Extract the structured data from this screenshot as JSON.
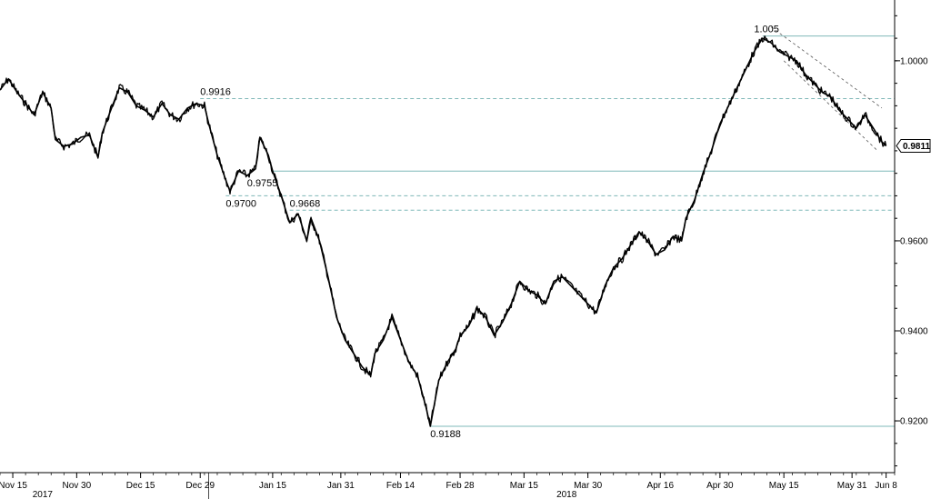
{
  "chart_data": {
    "type": "line",
    "title": "",
    "xlabel": "",
    "ylabel": "",
    "ylim": [
      0.9085,
      1.0135
    ],
    "x_range": [
      "2017-11-12",
      "2018-06-10"
    ],
    "y_ticks": [
      {
        "value": 1.0,
        "label": "1.0000"
      },
      {
        "value": 0.96,
        "label": "0.9600"
      },
      {
        "value": 0.94,
        "label": "0.9400"
      },
      {
        "value": 0.92,
        "label": "0.9200"
      }
    ],
    "x_ticks": [
      {
        "date": "2017-11-15",
        "label": "Nov 15"
      },
      {
        "date": "2017-11-30",
        "label": "Nov 30"
      },
      {
        "date": "2017-12-15",
        "label": "Dec 15"
      },
      {
        "date": "2017-12-29",
        "label": "Dec 29"
      },
      {
        "date": "2018-01-15",
        "label": "Jan 15"
      },
      {
        "date": "2018-01-31",
        "label": "Jan 31"
      },
      {
        "date": "2018-02-14",
        "label": "Feb 14"
      },
      {
        "date": "2018-02-28",
        "label": "Feb 28"
      },
      {
        "date": "2018-03-15",
        "label": "Mar 15"
      },
      {
        "date": "2018-03-30",
        "label": "Mar 30"
      },
      {
        "date": "2018-04-16",
        "label": "Apr 16"
      },
      {
        "date": "2018-04-30",
        "label": "Apr 30"
      },
      {
        "date": "2018-05-15",
        "label": "May 15"
      },
      {
        "date": "2018-05-31",
        "label": "May 31"
      },
      {
        "date": "2018-06-08",
        "label": "Jun 8"
      }
    ],
    "year_labels": [
      {
        "date": "2017-11-22",
        "label": "2017"
      },
      {
        "date": "2018-03-25",
        "label": "2018"
      }
    ],
    "year_separators": [
      "2017-12-31"
    ],
    "series": [
      {
        "values": [
          [
            "2017-11-12",
            0.9935
          ],
          [
            "2017-11-14",
            0.996
          ],
          [
            "2017-11-16",
            0.993
          ],
          [
            "2017-11-18",
            0.9905
          ],
          [
            "2017-11-20",
            0.988
          ],
          [
            "2017-11-22",
            0.993
          ],
          [
            "2017-11-24",
            0.9895
          ],
          [
            "2017-11-25",
            0.9825
          ],
          [
            "2017-11-27",
            0.981
          ],
          [
            "2017-11-29",
            0.9815
          ],
          [
            "2017-12-01",
            0.983
          ],
          [
            "2017-12-03",
            0.9835
          ],
          [
            "2017-12-05",
            0.9785
          ],
          [
            "2017-12-06",
            0.984
          ],
          [
            "2017-12-08",
            0.989
          ],
          [
            "2017-12-10",
            0.994
          ],
          [
            "2017-12-12",
            0.993
          ],
          [
            "2017-12-14",
            0.99
          ],
          [
            "2017-12-16",
            0.989
          ],
          [
            "2017-12-18",
            0.9875
          ],
          [
            "2017-12-20",
            0.9905
          ],
          [
            "2017-12-22",
            0.988
          ],
          [
            "2017-12-24",
            0.987
          ],
          [
            "2017-12-26",
            0.9895
          ],
          [
            "2017-12-28",
            0.9905
          ],
          [
            "2017-12-30",
            0.99
          ],
          [
            "2017-12-31",
            0.986
          ],
          [
            "2018-01-02",
            0.979
          ],
          [
            "2018-01-04",
            0.9735
          ],
          [
            "2018-01-05",
            0.971
          ],
          [
            "2018-01-07",
            0.9755
          ],
          [
            "2018-01-09",
            0.9745
          ],
          [
            "2018-01-11",
            0.976
          ],
          [
            "2018-01-12",
            0.983
          ],
          [
            "2018-01-14",
            0.979
          ],
          [
            "2018-01-15",
            0.9755
          ],
          [
            "2018-01-17",
            0.97
          ],
          [
            "2018-01-19",
            0.964
          ],
          [
            "2018-01-21",
            0.966
          ],
          [
            "2018-01-23",
            0.96
          ],
          [
            "2018-01-24",
            0.965
          ],
          [
            "2018-01-26",
            0.96
          ],
          [
            "2018-01-28",
            0.952
          ],
          [
            "2018-01-30",
            0.943
          ],
          [
            "2018-02-01",
            0.938
          ],
          [
            "2018-02-03",
            0.935
          ],
          [
            "2018-02-05",
            0.932
          ],
          [
            "2018-02-07",
            0.93
          ],
          [
            "2018-02-08",
            0.935
          ],
          [
            "2018-02-10",
            0.938
          ],
          [
            "2018-02-12",
            0.943
          ],
          [
            "2018-02-14",
            0.938
          ],
          [
            "2018-02-16",
            0.933
          ],
          [
            "2018-02-18",
            0.93
          ],
          [
            "2018-02-20",
            0.923
          ],
          [
            "2018-02-21",
            0.9188
          ],
          [
            "2018-02-23",
            0.929
          ],
          [
            "2018-02-25",
            0.933
          ],
          [
            "2018-02-27",
            0.936
          ],
          [
            "2018-02-28",
            0.939
          ],
          [
            "2018-03-02",
            0.941
          ],
          [
            "2018-03-04",
            0.945
          ],
          [
            "2018-03-06",
            0.943
          ],
          [
            "2018-03-08",
            0.939
          ],
          [
            "2018-03-10",
            0.942
          ],
          [
            "2018-03-12",
            0.946
          ],
          [
            "2018-03-14",
            0.951
          ],
          [
            "2018-03-16",
            0.949
          ],
          [
            "2018-03-18",
            0.948
          ],
          [
            "2018-03-20",
            0.946
          ],
          [
            "2018-03-22",
            0.951
          ],
          [
            "2018-03-24",
            0.952
          ],
          [
            "2018-03-26",
            0.95
          ],
          [
            "2018-03-28",
            0.948
          ],
          [
            "2018-03-30",
            0.946
          ],
          [
            "2018-04-01",
            0.944
          ],
          [
            "2018-04-03",
            0.95
          ],
          [
            "2018-04-05",
            0.954
          ],
          [
            "2018-04-07",
            0.956
          ],
          [
            "2018-04-09",
            0.959
          ],
          [
            "2018-04-11",
            0.962
          ],
          [
            "2018-04-13",
            0.96
          ],
          [
            "2018-04-15",
            0.957
          ],
          [
            "2018-04-17",
            0.958
          ],
          [
            "2018-04-19",
            0.961
          ],
          [
            "2018-04-21",
            0.96
          ],
          [
            "2018-04-22",
            0.965
          ],
          [
            "2018-04-24",
            0.969
          ],
          [
            "2018-04-26",
            0.975
          ],
          [
            "2018-04-28",
            0.98
          ],
          [
            "2018-04-30",
            0.986
          ],
          [
            "2018-05-02",
            0.99
          ],
          [
            "2018-05-04",
            0.994
          ],
          [
            "2018-05-06",
            0.998
          ],
          [
            "2018-05-08",
            1.002
          ],
          [
            "2018-05-10",
            1.005
          ],
          [
            "2018-05-12",
            1.004
          ],
          [
            "2018-05-14",
            1.002
          ],
          [
            "2018-05-16",
            1.001
          ],
          [
            "2018-05-18",
            1.0
          ],
          [
            "2018-05-20",
            0.997
          ],
          [
            "2018-05-22",
            0.995
          ],
          [
            "2018-05-24",
            0.993
          ],
          [
            "2018-05-26",
            0.992
          ],
          [
            "2018-05-28",
            0.989
          ],
          [
            "2018-05-30",
            0.987
          ],
          [
            "2018-06-01",
            0.985
          ],
          [
            "2018-06-03",
            0.988
          ],
          [
            "2018-06-05",
            0.985
          ],
          [
            "2018-06-07",
            0.982
          ],
          [
            "2018-06-08",
            0.9811
          ]
        ]
      }
    ],
    "solid_lines": [
      {
        "value": 1.0055,
        "x_start": "2018-05-10"
      },
      {
        "value": 0.9755,
        "x_start": "2018-01-15"
      },
      {
        "value": 0.9188,
        "x_start": "2018-02-21"
      }
    ],
    "dashed_lines": [
      {
        "value": 0.9916,
        "x_start": "2017-12-29"
      },
      {
        "value": 0.97,
        "x_start": "2018-01-04"
      },
      {
        "value": 0.9668,
        "x_start": "2018-01-19"
      }
    ],
    "annotations": [
      {
        "text": "1.005",
        "date": "2018-05-08",
        "value": 1.0055
      },
      {
        "text": "0.9916",
        "date": "2017-12-29",
        "value": 0.9916
      },
      {
        "text": "0.9755",
        "date": "2018-01-09",
        "value": 0.9755
      },
      {
        "text": "0.9700",
        "date": "2018-01-04",
        "value": 0.97
      },
      {
        "text": "0.9668",
        "date": "2018-01-19",
        "value": 0.9668
      },
      {
        "text": "0.9188",
        "date": "2018-02-21",
        "value": 0.9188
      }
    ],
    "channel": [
      {
        "from": [
          "2018-05-12",
          1.0075
        ],
        "to": [
          "2018-06-07",
          0.9895
        ]
      },
      {
        "from": [
          "2018-05-15",
          1.0
        ],
        "to": [
          "2018-06-06",
          0.98
        ]
      }
    ],
    "last_price": {
      "value": 0.9811,
      "label": "0.9811"
    },
    "colors": {
      "line": "#000000",
      "level": "#7fb8b8",
      "channel": "#555555",
      "axis": "#000000"
    }
  }
}
